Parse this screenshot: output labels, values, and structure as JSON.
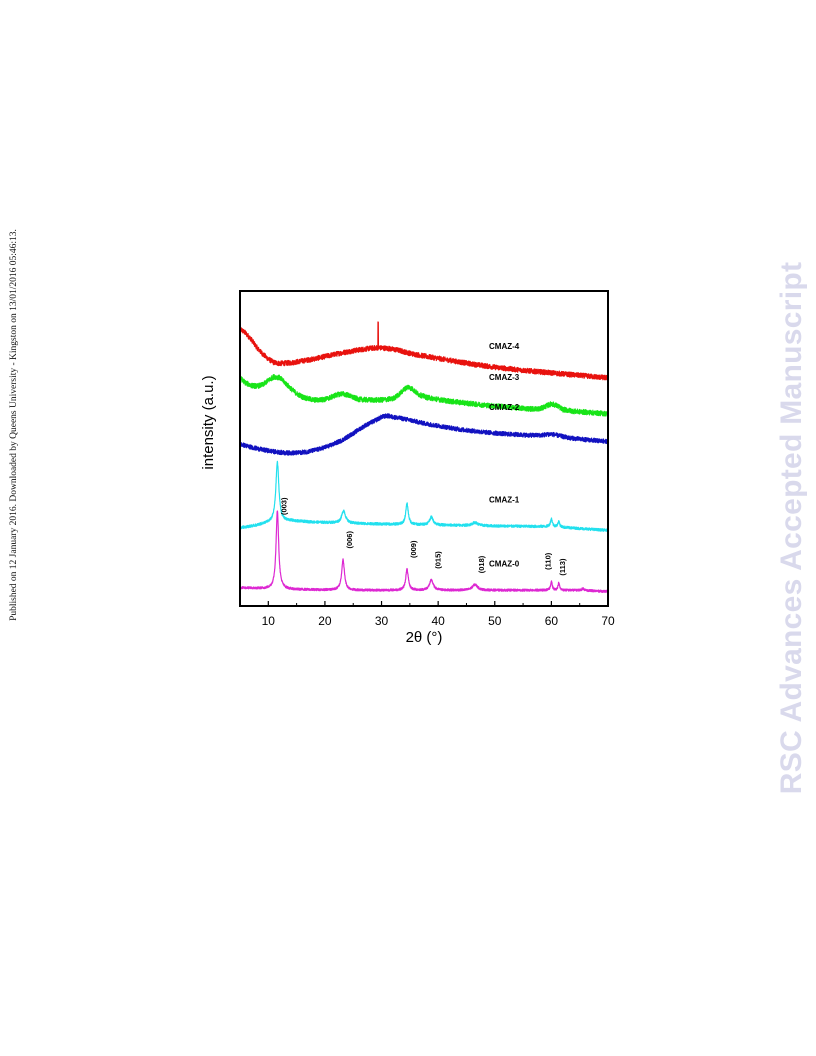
{
  "side_note": "Published on 12 January 2016. Downloaded by Queens University - Kingston on 13/01/2016 05:46:13.",
  "watermark": "RSC Advances Accepted Manuscript",
  "chart_data": {
    "type": "line",
    "title": "",
    "xlabel": "2θ (°)",
    "ylabel": "intensity (a.u.)",
    "xlim": [
      5,
      70
    ],
    "ylim": [
      0,
      1
    ],
    "xticks": [
      10,
      20,
      30,
      40,
      50,
      60,
      70
    ],
    "tick_labels": [
      "10",
      "20",
      "30",
      "40",
      "50",
      "60",
      "70"
    ],
    "grid": false,
    "legend": "inline labels at right",
    "series": [
      {
        "name": "CMAZ-4",
        "color": "#e8120e",
        "noise": 0.008,
        "points": [
          [
            5,
            0.88
          ],
          [
            6,
            0.866
          ],
          [
            7,
            0.846
          ],
          [
            8,
            0.82
          ],
          [
            9,
            0.8
          ],
          [
            10,
            0.784
          ],
          [
            11,
            0.773
          ],
          [
            12,
            0.77
          ],
          [
            14,
            0.772
          ],
          [
            16,
            0.778
          ],
          [
            18,
            0.784
          ],
          [
            20,
            0.792
          ],
          [
            22,
            0.8
          ],
          [
            24,
            0.807
          ],
          [
            26,
            0.813
          ],
          [
            28,
            0.818
          ],
          [
            29.5,
            0.82
          ],
          [
            31,
            0.818
          ],
          [
            33,
            0.812
          ],
          [
            35,
            0.802
          ],
          [
            38,
            0.792
          ],
          [
            42,
            0.78
          ],
          [
            46,
            0.768
          ],
          [
            50,
            0.758
          ],
          [
            55,
            0.748
          ],
          [
            60,
            0.74
          ],
          [
            65,
            0.732
          ],
          [
            70,
            0.724
          ]
        ],
        "spikes": [
          [
            29.4,
            0.08
          ]
        ]
      },
      {
        "name": "CMAZ-3",
        "color": "#18e418",
        "noise": 0.008,
        "points": [
          [
            5,
            0.724
          ],
          [
            6,
            0.708
          ],
          [
            7,
            0.7
          ],
          [
            8,
            0.698
          ],
          [
            9,
            0.702
          ],
          [
            10,
            0.716
          ],
          [
            11,
            0.728
          ],
          [
            12,
            0.725
          ],
          [
            13,
            0.708
          ],
          [
            14,
            0.69
          ],
          [
            15,
            0.674
          ],
          [
            16,
            0.664
          ],
          [
            17,
            0.658
          ],
          [
            18,
            0.654
          ],
          [
            19,
            0.654
          ],
          [
            20,
            0.656
          ],
          [
            21,
            0.662
          ],
          [
            22,
            0.67
          ],
          [
            23,
            0.674
          ],
          [
            24,
            0.67
          ],
          [
            25,
            0.662
          ],
          [
            26,
            0.656
          ],
          [
            28,
            0.654
          ],
          [
            30,
            0.654
          ],
          [
            32,
            0.658
          ],
          [
            33,
            0.67
          ],
          [
            34,
            0.688
          ],
          [
            34.7,
            0.696
          ],
          [
            35.5,
            0.688
          ],
          [
            36.5,
            0.672
          ],
          [
            38,
            0.662
          ],
          [
            40,
            0.656
          ],
          [
            42,
            0.65
          ],
          [
            45,
            0.644
          ],
          [
            48,
            0.638
          ],
          [
            52,
            0.632
          ],
          [
            56,
            0.626
          ],
          [
            58,
            0.626
          ],
          [
            59,
            0.634
          ],
          [
            60,
            0.642
          ],
          [
            61,
            0.636
          ],
          [
            62,
            0.624
          ],
          [
            64,
            0.618
          ],
          [
            67,
            0.614
          ],
          [
            70,
            0.61
          ]
        ],
        "spikes": []
      },
      {
        "name": "CMAZ-2",
        "color": "#1212c0",
        "noise": 0.007,
        "points": [
          [
            5,
            0.514
          ],
          [
            7,
            0.504
          ],
          [
            9,
            0.496
          ],
          [
            11,
            0.49
          ],
          [
            13,
            0.486
          ],
          [
            15,
            0.486
          ],
          [
            17,
            0.49
          ],
          [
            19,
            0.498
          ],
          [
            21,
            0.51
          ],
          [
            23,
            0.526
          ],
          [
            25,
            0.548
          ],
          [
            27,
            0.572
          ],
          [
            29,
            0.59
          ],
          [
            30,
            0.6
          ],
          [
            31,
            0.604
          ],
          [
            32,
            0.6
          ],
          [
            34,
            0.594
          ],
          [
            36,
            0.586
          ],
          [
            38,
            0.578
          ],
          [
            40,
            0.572
          ],
          [
            44,
            0.56
          ],
          [
            48,
            0.552
          ],
          [
            52,
            0.546
          ],
          [
            56,
            0.542
          ],
          [
            58,
            0.542
          ],
          [
            60,
            0.546
          ],
          [
            61,
            0.542
          ],
          [
            63,
            0.534
          ],
          [
            66,
            0.528
          ],
          [
            70,
            0.522
          ]
        ],
        "spikes": []
      },
      {
        "name": "CMAZ-1",
        "color": "#22e0ee",
        "noise": 0.004,
        "baseline": [
          [
            5,
            0.248
          ],
          [
            8,
            0.256
          ],
          [
            9.5,
            0.262
          ],
          [
            14,
            0.27
          ],
          [
            18,
            0.266
          ],
          [
            25,
            0.262
          ],
          [
            35,
            0.258
          ],
          [
            50,
            0.254
          ],
          [
            60,
            0.252
          ],
          [
            70,
            0.24
          ]
        ],
        "peaks": [
          [
            11.6,
            0.19,
            0.65
          ],
          [
            23.3,
            0.04,
            0.8
          ],
          [
            34.5,
            0.066,
            0.55
          ],
          [
            38.8,
            0.025,
            0.8
          ],
          [
            46.5,
            0.01,
            1.2
          ],
          [
            60.0,
            0.025,
            0.4
          ],
          [
            61.3,
            0.017,
            0.4
          ]
        ],
        "points": [],
        "spikes": []
      },
      {
        "name": "CMAZ-0",
        "color": "#dd28d2",
        "noise": 0.0035,
        "baseline": [
          [
            5,
            0.058
          ],
          [
            9,
            0.055
          ],
          [
            15,
            0.052
          ],
          [
            25,
            0.05
          ],
          [
            35,
            0.05
          ],
          [
            50,
            0.05
          ],
          [
            65,
            0.05
          ],
          [
            70,
            0.046
          ]
        ],
        "peaks": [
          [
            11.6,
            0.25,
            0.55
          ],
          [
            23.2,
            0.096,
            0.6
          ],
          [
            34.5,
            0.066,
            0.55
          ],
          [
            38.8,
            0.032,
            0.8
          ],
          [
            46.5,
            0.018,
            1.1
          ],
          [
            60.0,
            0.028,
            0.35
          ],
          [
            61.3,
            0.022,
            0.35
          ],
          [
            65.6,
            0.006,
            0.5
          ]
        ],
        "points": [],
        "spikes": []
      }
    ],
    "peak_labels": [
      {
        "text": "(003)",
        "x": 11.6
      },
      {
        "text": "(006)",
        "x": 23.2
      },
      {
        "text": "(009)",
        "x": 34.5
      },
      {
        "text": "(015)",
        "x": 38.8
      },
      {
        "text": "(018)",
        "x": 46.5
      },
      {
        "text": "(110)",
        "x": 60.0
      },
      {
        "text": "(113)",
        "x": 61.5
      }
    ]
  }
}
